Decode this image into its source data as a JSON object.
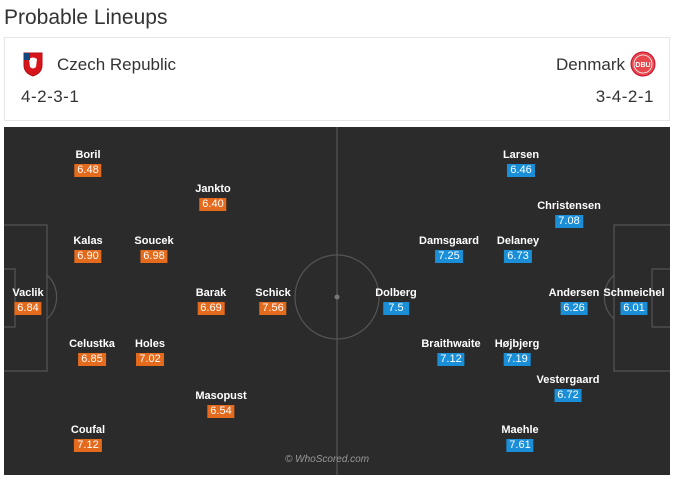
{
  "page_title": "Probable Lineups",
  "home": {
    "name": "Czech Republic",
    "formation": "4-2-3-1",
    "color": "#e46a1d",
    "crest_icon": "czech-crest-icon",
    "players": [
      {
        "name": "Boril",
        "rating": "6.48"
      },
      {
        "name": "Jankto",
        "rating": "6.40"
      },
      {
        "name": "Kalas",
        "rating": "6.90"
      },
      {
        "name": "Soucek",
        "rating": "6.98"
      },
      {
        "name": "Vaclik",
        "rating": "6.84"
      },
      {
        "name": "Barak",
        "rating": "6.69"
      },
      {
        "name": "Schick",
        "rating": "7.56"
      },
      {
        "name": "Celustka",
        "rating": "6.85"
      },
      {
        "name": "Holes",
        "rating": "7.02"
      },
      {
        "name": "Masopust",
        "rating": "6.54"
      },
      {
        "name": "Coufal",
        "rating": "7.12"
      }
    ]
  },
  "away": {
    "name": "Denmark",
    "formation": "3-4-2-1",
    "color": "#1a8fd8",
    "crest_icon": "dbu-crest-icon",
    "crest_text": "DBU",
    "players": [
      {
        "name": "Larsen",
        "rating": "6.46"
      },
      {
        "name": "Christensen",
        "rating": "7.08"
      },
      {
        "name": "Damsgaard",
        "rating": "7.25"
      },
      {
        "name": "Delaney",
        "rating": "6.73"
      },
      {
        "name": "Dolberg",
        "rating": "7.5"
      },
      {
        "name": "Andersen",
        "rating": "6.26"
      },
      {
        "name": "Schmeichel",
        "rating": "6.01"
      },
      {
        "name": "Braithwaite",
        "rating": "7.12"
      },
      {
        "name": "Højbjerg",
        "rating": "7.19"
      },
      {
        "name": "Vestergaard",
        "rating": "6.72"
      },
      {
        "name": "Maehle",
        "rating": "7.61"
      }
    ]
  },
  "watermark": "© WhoScored.com"
}
